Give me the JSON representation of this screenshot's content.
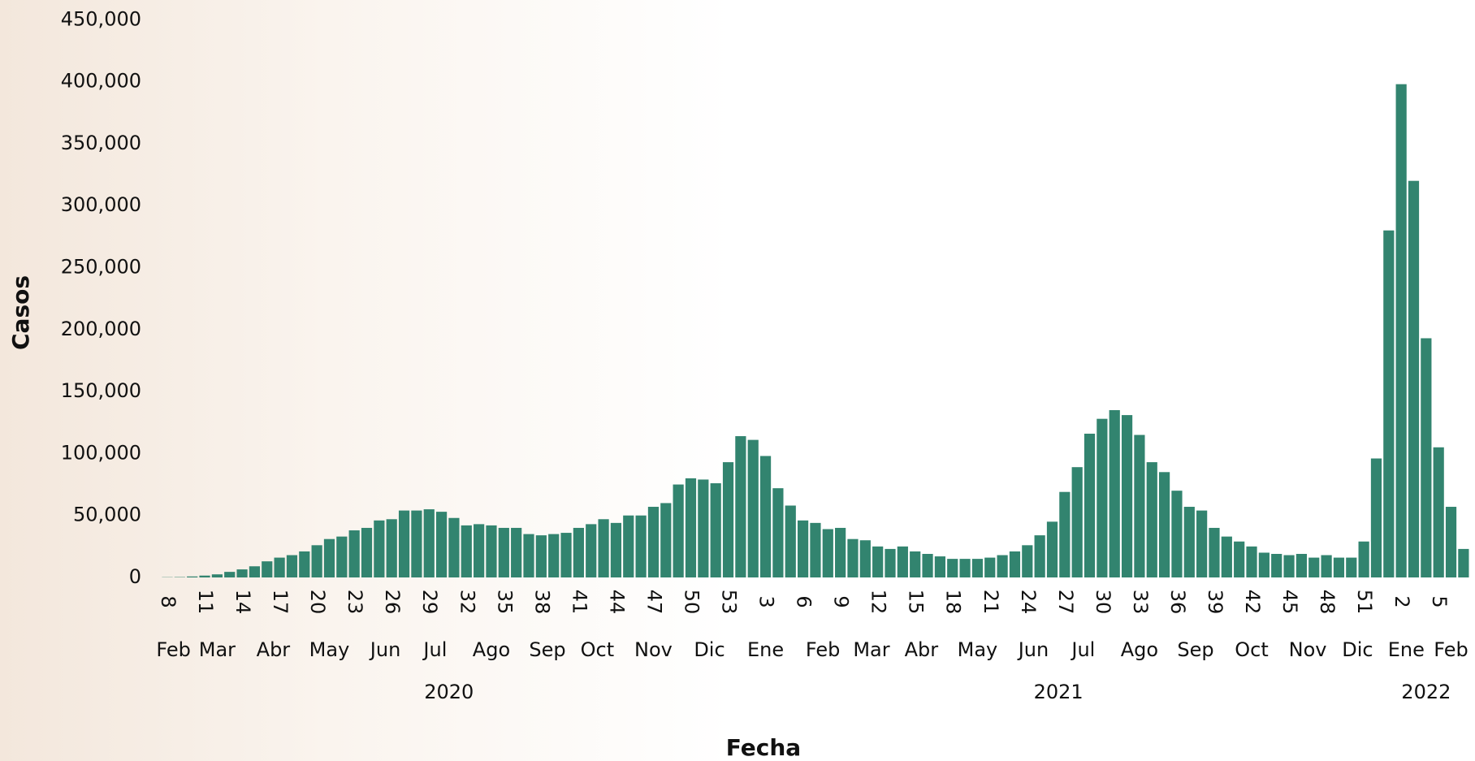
{
  "chart_data": {
    "type": "bar",
    "x_label": "Fecha",
    "y_label": "Casos",
    "color": "#32846f",
    "ylim": [
      0,
      450000
    ],
    "yticks": [
      0,
      {
        "value": 50000,
        "label": "50,000"
      },
      {
        "value": 100000,
        "label": "100,000"
      },
      {
        "value": 150000,
        "label": "150,000"
      },
      {
        "value": 200000,
        "label": "200,000"
      },
      {
        "value": 250000,
        "label": "250,000"
      },
      {
        "value": 300000,
        "label": "300,000"
      },
      {
        "value": 350000,
        "label": "350,000"
      },
      {
        "value": 400000,
        "label": "400,000"
      },
      {
        "value": 450000,
        "label": "450,000"
      }
    ],
    "categories": [
      "8",
      null,
      null,
      "11",
      null,
      null,
      "14",
      null,
      null,
      "17",
      null,
      null,
      "20",
      null,
      null,
      "23",
      null,
      null,
      "26",
      null,
      null,
      "29",
      null,
      null,
      "32",
      null,
      null,
      "35",
      null,
      null,
      "38",
      null,
      null,
      "41",
      null,
      null,
      "44",
      null,
      null,
      "47",
      null,
      null,
      "50",
      null,
      null,
      "53",
      null,
      null,
      "3",
      null,
      null,
      "6",
      null,
      null,
      "9",
      null,
      null,
      "12",
      null,
      null,
      "15",
      null,
      null,
      "18",
      null,
      null,
      "21",
      null,
      null,
      "24",
      null,
      null,
      "27",
      null,
      null,
      "30",
      null,
      null,
      "33",
      null,
      null,
      "36",
      null,
      null,
      "39",
      null,
      null,
      "42",
      null,
      null,
      "45",
      null,
      null,
      "48",
      null,
      null,
      "51",
      null,
      null,
      "2",
      null,
      null,
      "5",
      null,
      null
    ],
    "values": [
      200,
      300,
      800,
      1500,
      2500,
      4500,
      6500,
      9000,
      13000,
      16000,
      18000,
      21000,
      26000,
      31000,
      33000,
      38000,
      40000,
      46000,
      47000,
      54000,
      54000,
      55000,
      53000,
      48000,
      42000,
      43000,
      42000,
      40000,
      40000,
      35000,
      34000,
      35000,
      36000,
      40000,
      43000,
      47000,
      44000,
      50000,
      50000,
      57000,
      60000,
      75000,
      80000,
      79000,
      76000,
      93000,
      114000,
      111000,
      98000,
      72000,
      58000,
      46000,
      44000,
      39000,
      40000,
      31000,
      30000,
      25000,
      23000,
      25000,
      21000,
      19000,
      17000,
      15000,
      15000,
      15000,
      16000,
      18000,
      21000,
      26000,
      34000,
      45000,
      69000,
      89000,
      116000,
      128000,
      135000,
      131000,
      115000,
      93000,
      85000,
      70000,
      57000,
      54000,
      40000,
      33000,
      29000,
      25000,
      20000,
      19000,
      18000,
      19000,
      16000,
      18000,
      16000,
      16000,
      29000,
      96000,
      280000,
      398000,
      320000,
      193000,
      105000,
      57000,
      23000
    ],
    "months": [
      "Feb",
      "Mar",
      "Abr",
      "May",
      "Jun",
      "Jul",
      "Ago",
      "Sep",
      "Oct",
      "Nov",
      "Dic",
      "Ene",
      "Feb",
      "Mar",
      "Abr",
      "May",
      "Jun",
      "Jul",
      "Ago",
      "Sep",
      "Oct",
      "Nov",
      "Dic",
      "Ene",
      "Feb"
    ],
    "years": [
      "2020",
      "2021",
      "2022"
    ]
  }
}
